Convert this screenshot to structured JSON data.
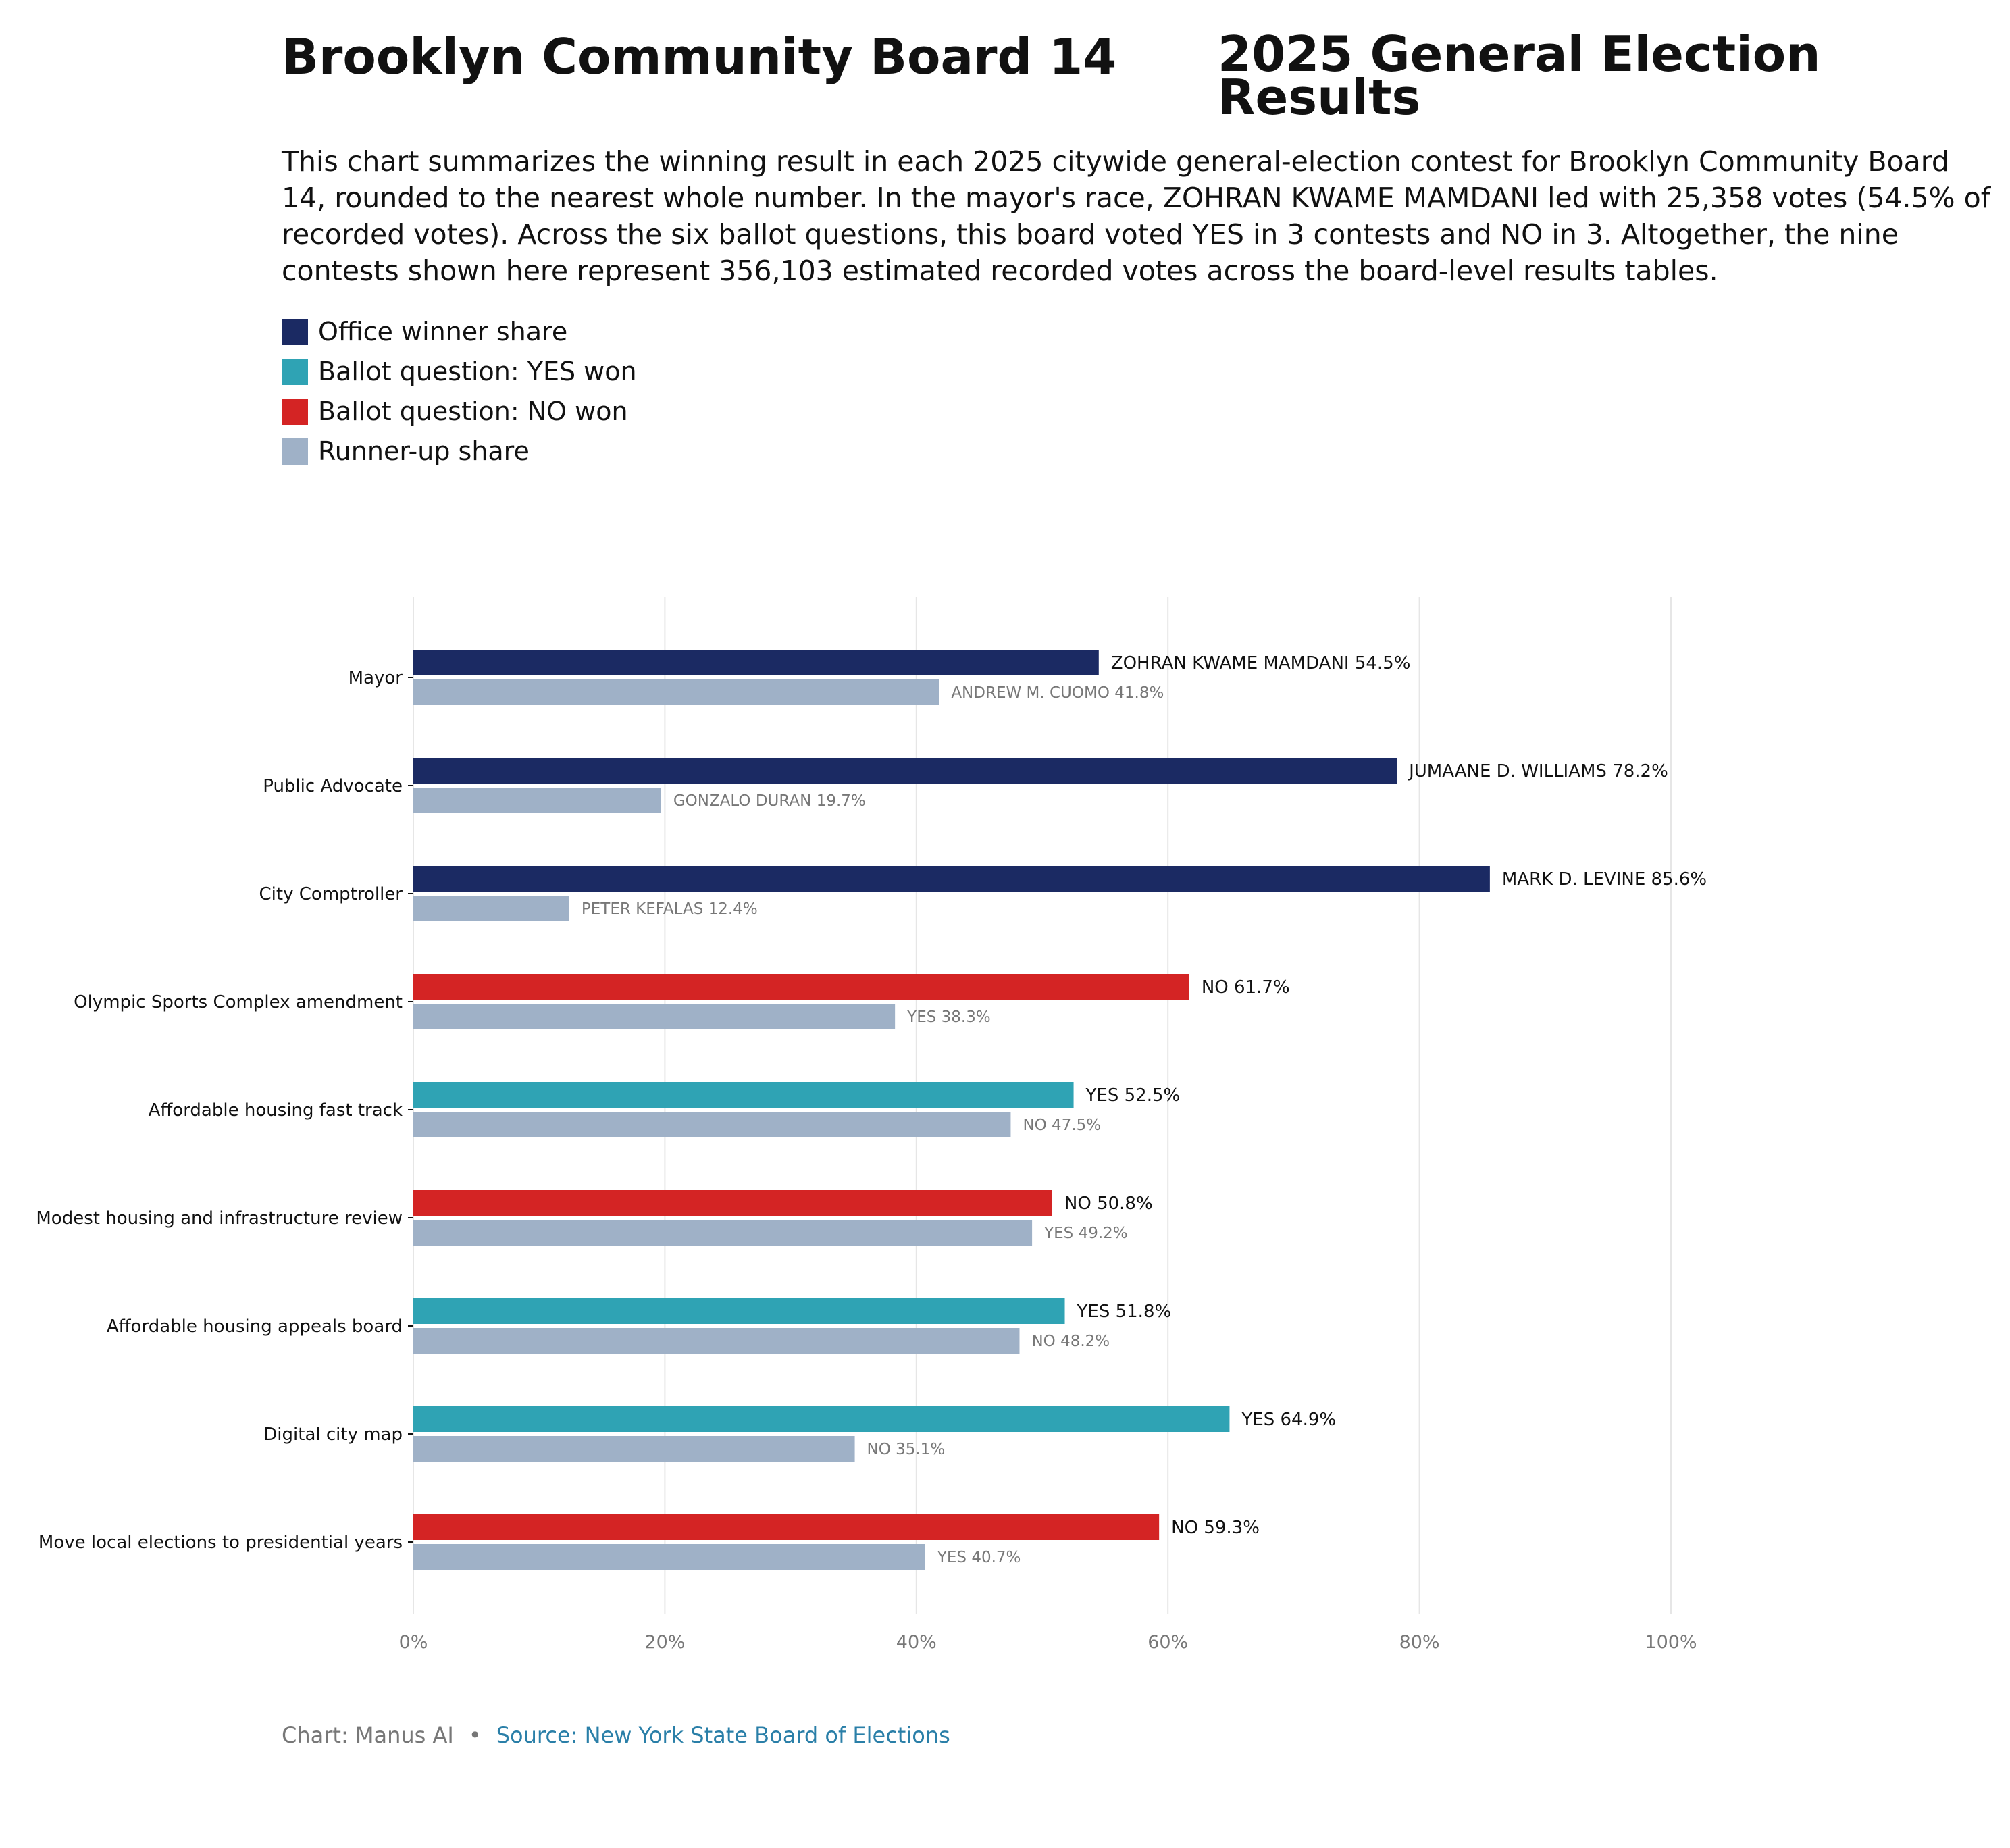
{
  "header": {
    "title_left": "Brooklyn Community Board 14",
    "title_right": "2025 General Election Results",
    "summary": "This chart summarizes the winning result in each 2025 citywide general-election contest for Brooklyn Community Board 14, rounded to the nearest whole number. In the mayor's race, ZOHRAN KWAME MAMDANI led with 25,358 votes (54.5% of recorded votes). Across the six ballot questions, this board voted YES in 3 contests and NO in 3. Altogether, the nine contests shown here represent 356,103 estimated recorded votes across the board-level results tables."
  },
  "legend": [
    {
      "label": "Office winner share",
      "color": "#1b2a63"
    },
    {
      "label": "Ballot question: YES won",
      "color": "#2fa3b4"
    },
    {
      "label": "Ballot question: NO won",
      "color": "#d42424"
    },
    {
      "label": "Runner-up share",
      "color": "#9fb1c7"
    }
  ],
  "colors": {
    "office_winner": "#1b2a63",
    "yes_won": "#2fa3b4",
    "no_won": "#d42424",
    "runner_up": "#9fb1c7",
    "grid": "#e6e6e6",
    "tick_text": "#777777",
    "winner_label": "#111111",
    "runner_label": "#777777"
  },
  "chart_data": {
    "type": "bar",
    "orientation": "horizontal",
    "categories": [
      "Mayor",
      "Public Advocate",
      "City Comptroller",
      "Olympic Sports Complex amendment",
      "Affordable housing fast track",
      "Modest housing and infrastructure review",
      "Affordable housing appeals board",
      "Digital city map",
      "Move local elections to presidential years"
    ],
    "series": [
      {
        "name": "Winner",
        "values": [
          54.5,
          78.2,
          85.6,
          61.7,
          52.5,
          50.8,
          51.8,
          64.9,
          59.3
        ],
        "kinds": [
          "office",
          "office",
          "office",
          "no",
          "yes",
          "no",
          "yes",
          "yes",
          "no"
        ],
        "labels": [
          "ZOHRAN KWAME MAMDANI 54.5%",
          "JUMAANE D. WILLIAMS 78.2%",
          "MARK D. LEVINE 85.6%",
          "NO 61.7%",
          "YES 52.5%",
          "NO 50.8%",
          "YES 51.8%",
          "YES 64.9%",
          "NO 59.3%"
        ]
      },
      {
        "name": "Runner-up share",
        "values": [
          41.8,
          19.7,
          12.4,
          38.3,
          47.5,
          49.2,
          48.2,
          35.1,
          40.7
        ],
        "labels": [
          "ANDREW M. CUOMO 41.8%",
          "GONZALO DURAN 19.7%",
          "PETER KEFALAS 12.4%",
          "YES 38.3%",
          "NO 47.5%",
          "YES 49.2%",
          "NO 48.2%",
          "NO 35.1%",
          "YES 40.7%"
        ]
      }
    ],
    "xlim": [
      0,
      100
    ],
    "xticks": [
      0,
      20,
      40,
      60,
      80,
      100
    ],
    "xtick_labels": [
      "0%",
      "20%",
      "40%",
      "60%",
      "80%",
      "100%"
    ],
    "grid": true,
    "xlabel": "",
    "ylabel": ""
  },
  "footer": {
    "credit": "Chart: Manus AI",
    "separator": "•",
    "source": "Source: New York State Board of Elections"
  }
}
